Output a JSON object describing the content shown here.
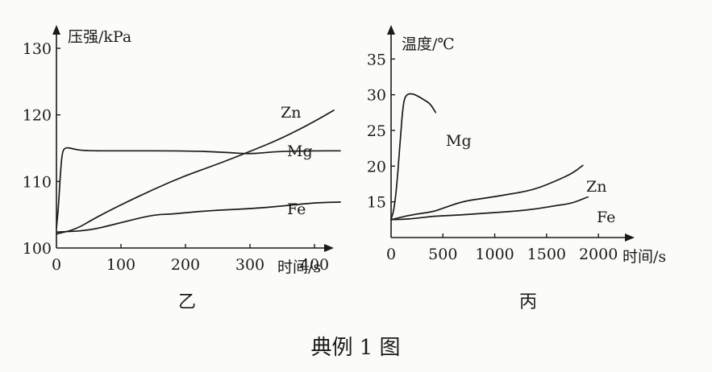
{
  "caption": "典例 1 图",
  "chart_data": [
    {
      "type": "line",
      "panel_label": "乙",
      "xlabel": "时间/s",
      "ylabel": "压强/kPa",
      "xlim": [
        0,
        450
      ],
      "ylim": [
        100,
        130
      ],
      "x_ticks": [
        "0",
        "100",
        "200",
        "300",
        "400"
      ],
      "y_ticks": [
        "100",
        "110",
        "120",
        "130"
      ],
      "series": [
        {
          "name": "Zn",
          "points": [
            [
              0,
              102.1
            ],
            [
              30,
              102.8
            ],
            [
              60,
              104.5
            ],
            [
              100,
              106.5
            ],
            [
              150,
              108.8
            ],
            [
              200,
              110.9
            ],
            [
              250,
              112.6
            ],
            [
              300,
              114.5
            ],
            [
              350,
              116.5
            ],
            [
              400,
              119
            ],
            [
              430,
              120.7
            ]
          ]
        },
        {
          "name": "Mg",
          "points": [
            [
              0,
              103
            ],
            [
              3,
              106
            ],
            [
              6,
              111
            ],
            [
              9,
              114.5
            ],
            [
              14,
              115.1
            ],
            [
              22,
              115
            ],
            [
              40,
              114.6
            ],
            [
              100,
              114.6
            ],
            [
              200,
              114.6
            ],
            [
              260,
              114.4
            ],
            [
              300,
              114.1
            ],
            [
              340,
              114.5
            ],
            [
              400,
              114.6
            ],
            [
              440,
              114.6
            ]
          ]
        },
        {
          "name": "Fe",
          "points": [
            [
              0,
              102.4
            ],
            [
              50,
              102.6
            ],
            [
              100,
              103.8
            ],
            [
              150,
              105
            ],
            [
              180,
              105.1
            ],
            [
              200,
              105.3
            ],
            [
              250,
              105.7
            ],
            [
              300,
              105.9
            ],
            [
              350,
              106.3
            ],
            [
              400,
              106.8
            ],
            [
              440,
              106.9
            ]
          ]
        }
      ]
    },
    {
      "type": "line",
      "panel_label": "丙",
      "xlabel": "时间/s",
      "ylabel": "温度/℃",
      "xlim": [
        0,
        2100
      ],
      "ylim": [
        10,
        40
      ],
      "x_ticks": [
        "0",
        "500",
        "1000",
        "1500",
        "2000"
      ],
      "y_ticks": [
        "15",
        "20",
        "25",
        "30",
        "35"
      ],
      "series": [
        {
          "name": "Mg",
          "points": [
            [
              0,
              12.5
            ],
            [
              30,
              14
            ],
            [
              60,
              18
            ],
            [
              90,
              24
            ],
            [
              115,
              28.5
            ],
            [
              140,
              30
            ],
            [
              200,
              30.2
            ],
            [
              260,
              29.8
            ],
            [
              330,
              29.2
            ],
            [
              380,
              28.7
            ],
            [
              430,
              27.5
            ]
          ]
        },
        {
          "name": "Zn",
          "points": [
            [
              0,
              12.5
            ],
            [
              200,
              13.2
            ],
            [
              400,
              13.6
            ],
            [
              500,
              14.1
            ],
            [
              700,
              15.1
            ],
            [
              900,
              15.5
            ],
            [
              1200,
              16.2
            ],
            [
              1400,
              16.8
            ],
            [
              1600,
              18
            ],
            [
              1750,
              19
            ],
            [
              1850,
              20.1
            ]
          ]
        },
        {
          "name": "Fe",
          "points": [
            [
              0,
              12.5
            ],
            [
              200,
              12.6
            ],
            [
              400,
              13
            ],
            [
              600,
              13.1
            ],
            [
              800,
              13.3
            ],
            [
              1000,
              13.5
            ],
            [
              1200,
              13.7
            ],
            [
              1400,
              14
            ],
            [
              1600,
              14.5
            ],
            [
              1750,
              14.8
            ],
            [
              1900,
              15.7
            ]
          ]
        }
      ]
    }
  ]
}
